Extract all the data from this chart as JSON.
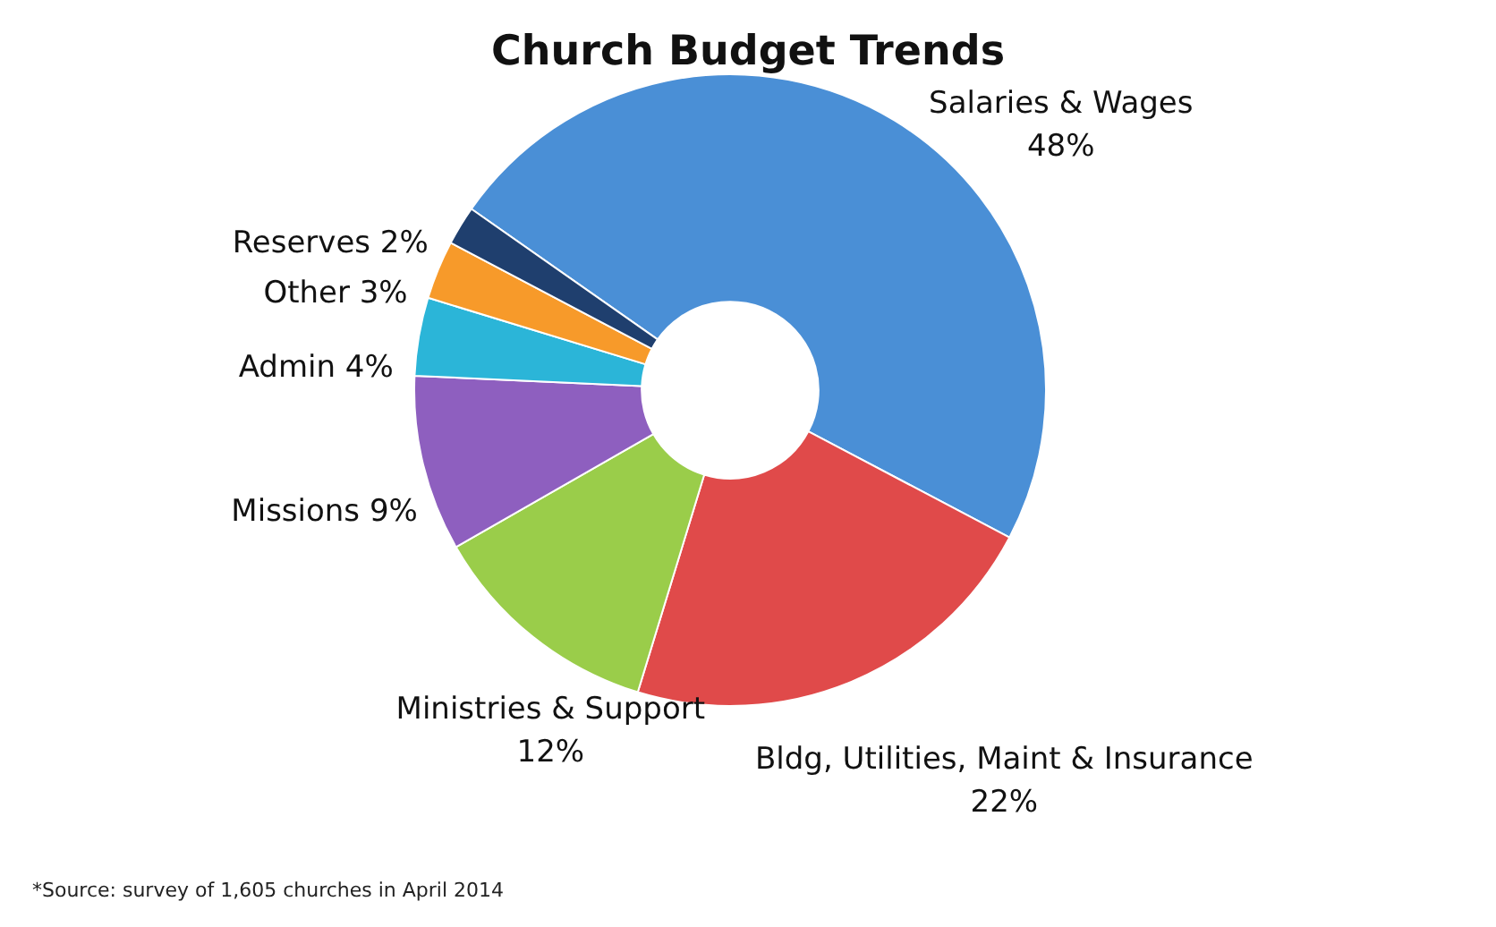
{
  "chart_data": {
    "type": "donut",
    "title": "Church Budget Trends",
    "categories": [
      "Salaries & Wages",
      "Bldg, Utilities, Maint & Insurance",
      "Ministries & Support",
      "Missions",
      "Admin",
      "Other",
      "Reserves"
    ],
    "values": [
      48,
      22,
      12,
      9,
      4,
      3,
      2
    ],
    "colors": [
      "#4a8fd6",
      "#e04a4a",
      "#9acd4a",
      "#8e5fbf",
      "#2bb5d8",
      "#f79a2a",
      "#1f3f6e"
    ],
    "value_labels": [
      "48%",
      "22%",
      "12%",
      "9%",
      "4%",
      "3%",
      "2%"
    ],
    "legend": false,
    "annotations": [
      "*Source: survey of 1,605 churches in April 2014"
    ]
  }
}
